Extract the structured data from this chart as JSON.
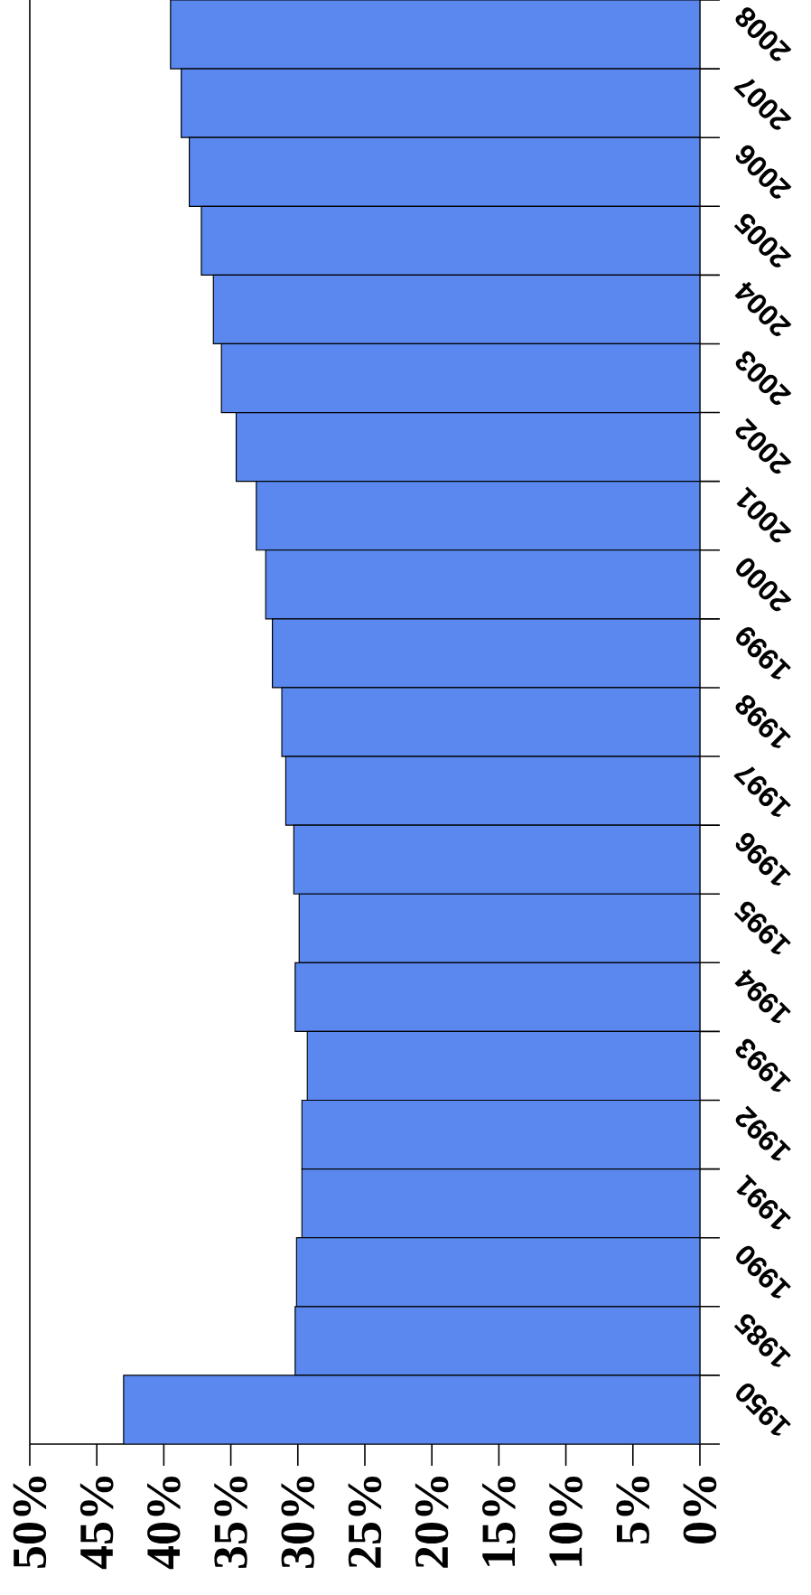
{
  "chart_data": {
    "type": "bar",
    "orientation": "horizontal",
    "categories": [
      "2008",
      "2007",
      "2006",
      "2005",
      "2004",
      "2003",
      "2002",
      "2001",
      "2000",
      "1999",
      "1998",
      "1997",
      "1996",
      "1995",
      "1994",
      "1993",
      "1992",
      "1991",
      "1990",
      "1985",
      "1950"
    ],
    "values": [
      39.5,
      38.7,
      38.1,
      37.2,
      36.3,
      35.7,
      34.6,
      33.1,
      32.4,
      31.9,
      31.2,
      30.9,
      30.3,
      29.9,
      30.2,
      29.3,
      29.7,
      29.7,
      30.1,
      30.2,
      43.0
    ],
    "color": "#5a88ee",
    "xlim": [
      50,
      0
    ],
    "xticks": [
      {
        "value": 50,
        "label": "50%"
      },
      {
        "value": 45,
        "label": "45%"
      },
      {
        "value": 40,
        "label": "40%"
      },
      {
        "value": 35,
        "label": "35%"
      },
      {
        "value": 30,
        "label": "30%"
      },
      {
        "value": 25,
        "label": "25%"
      },
      {
        "value": 20,
        "label": "20%"
      },
      {
        "value": 15,
        "label": "15%"
      },
      {
        "value": 10,
        "label": "10%"
      },
      {
        "value": 5,
        "label": "5%"
      },
      {
        "value": 0,
        "label": "0%"
      }
    ]
  }
}
